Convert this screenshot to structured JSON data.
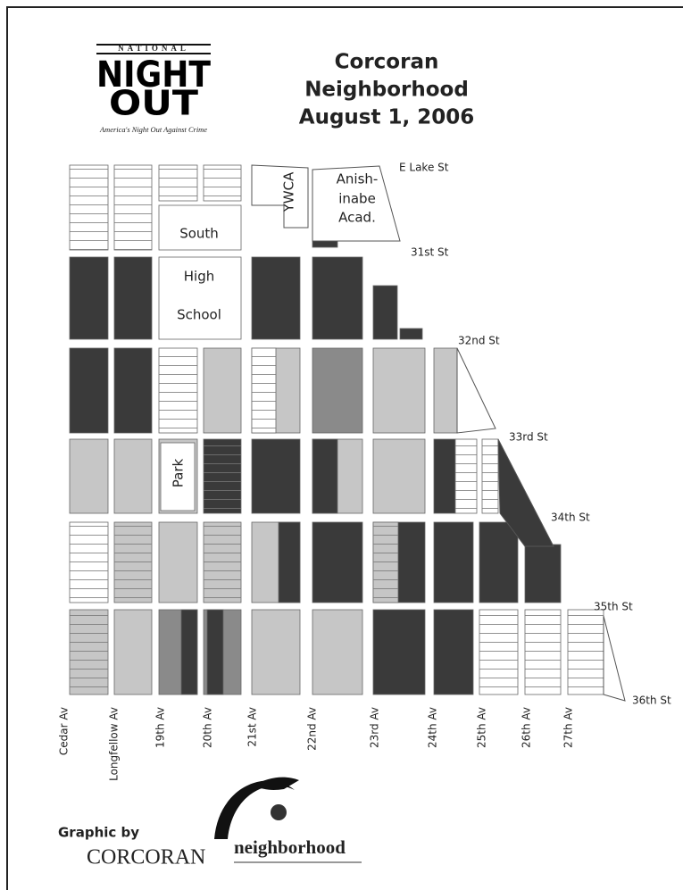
{
  "logo": {
    "banner": "NATIONAL",
    "line1": "NIGHT",
    "line2": "OUT",
    "tagline": "America's Night Out Against Crime"
  },
  "title": [
    "Corcoran",
    "Neighborhood",
    "August 1, 2006"
  ],
  "streets": [
    "E Lake St",
    "31st St",
    "32nd St",
    "33rd St",
    "34th St",
    "35th St",
    "36th St"
  ],
  "avenues": [
    "Cedar Av",
    "Longfellow Av",
    "19th Av",
    "20th Av",
    "21st Av",
    "22nd Av",
    "23rd Av",
    "24th Av",
    "25th Av",
    "26th Av",
    "27th Av"
  ],
  "landmarks": [
    "YWCA",
    "Anish-",
    "inabe",
    "Acad.",
    "South",
    "High",
    "School",
    "Park"
  ],
  "credit": {
    "by": "Graphic by",
    "org": "CORCORAN",
    "word": "neighborhood"
  }
}
